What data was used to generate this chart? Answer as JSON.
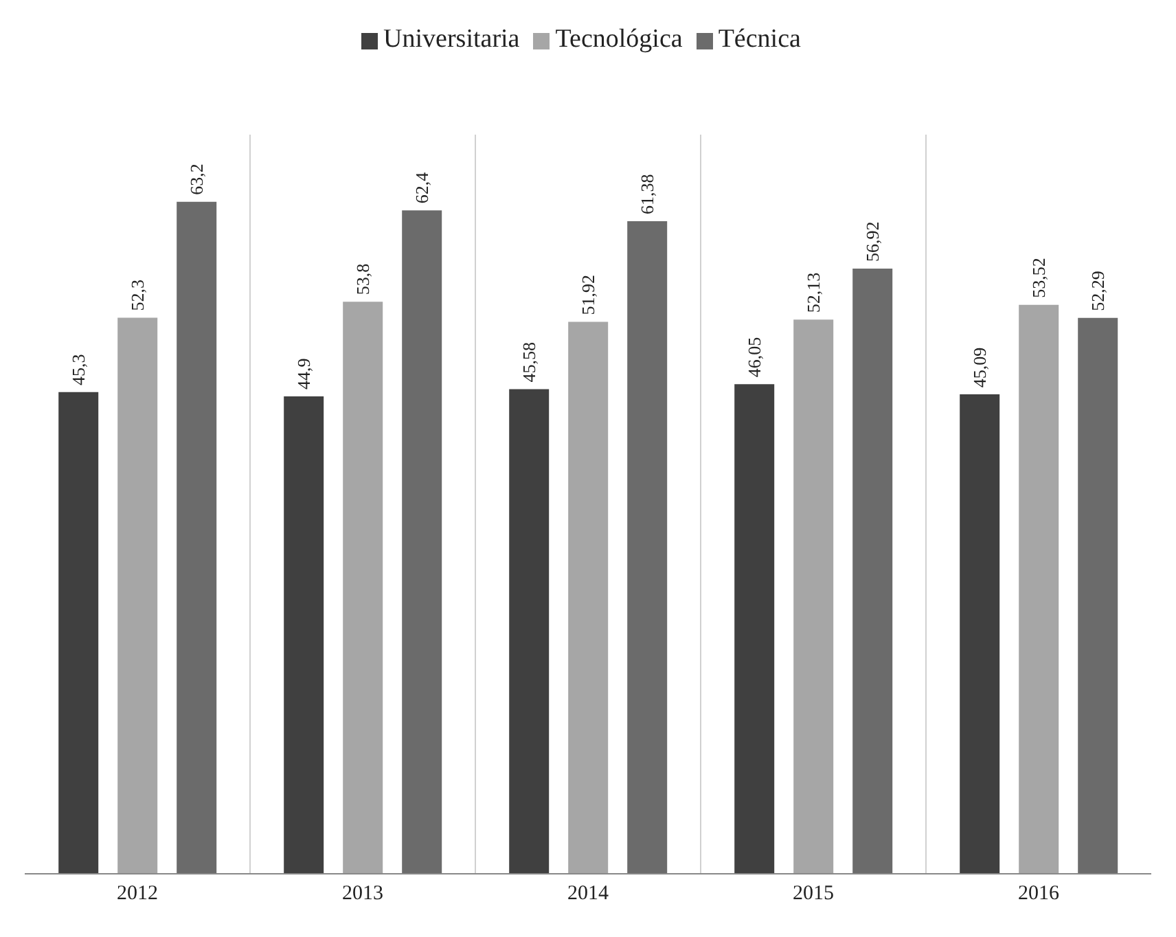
{
  "chart_data": {
    "type": "bar",
    "categories": [
      "2012",
      "2013",
      "2014",
      "2015",
      "2016"
    ],
    "series": [
      {
        "name": "Universitaria",
        "color": "#404040",
        "values": [
          45.3,
          44.9,
          45.58,
          46.05,
          45.09
        ],
        "value_labels": [
          "45,3",
          "44,9",
          "45,58",
          "46,05",
          "45,09"
        ]
      },
      {
        "name": "Tecnológica",
        "color": "#a6a6a6",
        "values": [
          52.3,
          53.8,
          51.92,
          52.13,
          53.52
        ],
        "value_labels": [
          "52,3",
          "53,8",
          "51,92",
          "52,13",
          "53,52"
        ]
      },
      {
        "name": "Técnica",
        "color": "#6b6b6b",
        "values": [
          63.2,
          62.4,
          61.38,
          56.92,
          52.29
        ],
        "value_labels": [
          "63,2",
          "62,4",
          "61,38",
          "56,92",
          "52,29"
        ]
      }
    ],
    "legend": "top",
    "grid": "x"
  }
}
